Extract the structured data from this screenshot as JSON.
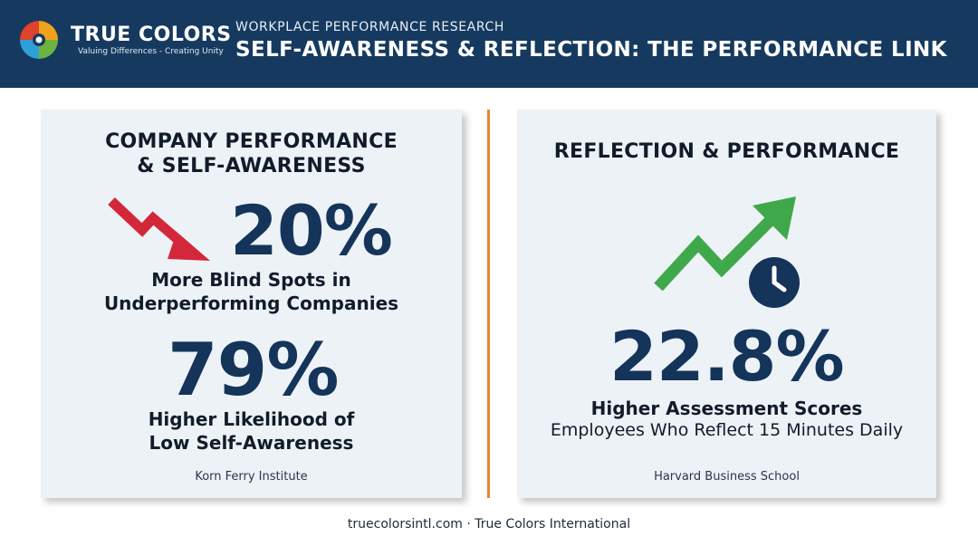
{
  "header": {
    "brand_name": "TRUE COLORS",
    "brand_tagline": "Valuing Differences - Creating Unity",
    "eyebrow": "WORKPLACE PERFORMANCE RESEARCH",
    "title": "SELF-AWARENESS & REFLECTION: THE PERFORMANCE LINK",
    "logo_colors": [
      "#f0a21b",
      "#e2412c",
      "#2f9fd8",
      "#6cb33f"
    ]
  },
  "left_card": {
    "heading_line1": "COMPANY PERFORMANCE",
    "heading_line2": "& SELF-AWARENESS",
    "trend_icon": "trend-down-arrow-icon",
    "stat1_value": "20%",
    "stat1_label_line1": "More Blind Spots in",
    "stat1_label_line2": "Underperforming Companies",
    "stat2_value": "79%",
    "stat2_label_line1": "Higher Likelihood of",
    "stat2_label_line2": "Low Self-Awareness",
    "source": "Korn Ferry Institute"
  },
  "right_card": {
    "heading": "REFLECTION & PERFORMANCE",
    "trend_icon": "trend-up-arrow-icon",
    "clock_icon": "clock-icon",
    "stat_value": "22.8%",
    "stat_label": "Higher Assessment Scores",
    "stat_sub": "Employees Who Reflect 15 Minutes Daily",
    "source": "Harvard Business School"
  },
  "footer": {
    "text": "truecolorsintl.com · True Colors International"
  },
  "colors": {
    "header_bg": "#163a5f",
    "card_bg": "#edf2f7",
    "stat_navy": "#14345a",
    "down_red": "#d3283a",
    "up_green": "#3fa84a",
    "divider_orange": "#e0882e"
  }
}
